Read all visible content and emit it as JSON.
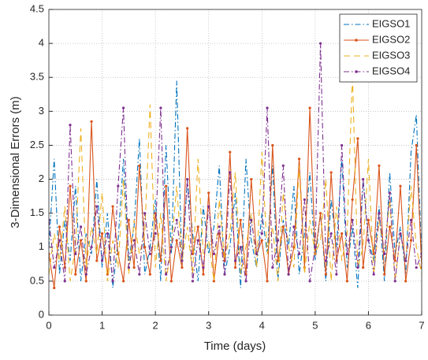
{
  "chart_data": {
    "type": "line",
    "xlabel": "Time (days)",
    "ylabel": "3-Dimensional Errors (m)",
    "x": [
      0,
      0.1,
      0.2,
      0.3,
      0.4,
      0.5,
      0.6,
      0.7,
      0.8,
      0.9,
      1,
      1.1,
      1.2,
      1.3,
      1.4,
      1.5,
      1.6,
      1.7,
      1.8,
      1.9,
      2,
      2.1,
      2.2,
      2.3,
      2.4,
      2.5,
      2.6,
      2.7,
      2.8,
      2.9,
      3,
      3.1,
      3.2,
      3.3,
      3.4,
      3.5,
      3.6,
      3.7,
      3.8,
      3.9,
      4,
      4.1,
      4.2,
      4.3,
      4.4,
      4.5,
      4.6,
      4.7,
      4.8,
      4.9,
      5,
      5.1,
      5.2,
      5.3,
      5.4,
      5.5,
      5.6,
      5.7,
      5.8,
      5.9,
      6,
      6.1,
      6.2,
      6.3,
      6.4,
      6.5,
      6.6,
      6.7,
      6.8,
      6.9,
      7
    ],
    "series": [
      {
        "name": "EIGSO1",
        "color": "#0072BD",
        "dash": "7 3 1.5 3",
        "marker": "none",
        "values": [
          1.0,
          2.3,
          0.6,
          1.4,
          0.8,
          1.9,
          0.5,
          1.2,
          0.9,
          2.0,
          0.7,
          1.5,
          0.4,
          1.1,
          2.3,
          0.8,
          1.3,
          2.6,
          0.6,
          1.0,
          1.7,
          0.5,
          2.5,
          0.9,
          3.45,
          0.7,
          2.0,
          1.2,
          0.5,
          1.6,
          0.9,
          1.3,
          2.2,
          0.6,
          1.0,
          1.8,
          0.4,
          2.3,
          1.1,
          0.7,
          1.5,
          0.9,
          2.2,
          0.5,
          1.4,
          1.0,
          1.9,
          0.6,
          1.2,
          2.1,
          0.8,
          1.5,
          0.5,
          1.7,
          1.0,
          2.3,
          0.7,
          1.3,
          0.4,
          2.0,
          1.1,
          0.8,
          1.6,
          0.5,
          2.1,
          0.9,
          1.3,
          0.6,
          2.4,
          2.95,
          0.8
        ]
      },
      {
        "name": "EIGSO2",
        "color": "#D95319",
        "dash": "none",
        "marker": "dot",
        "values": [
          0.9,
          0.4,
          1.3,
          0.7,
          1.9,
          0.6,
          1.1,
          0.5,
          2.85,
          0.8,
          1.2,
          0.6,
          1.6,
          0.9,
          0.5,
          1.4,
          0.7,
          2.2,
          1.0,
          0.6,
          1.5,
          0.8,
          1.9,
          0.5,
          1.1,
          0.7,
          2.75,
          0.9,
          1.3,
          0.6,
          1.8,
          0.5,
          1.2,
          0.8,
          2.4,
          0.7,
          1.4,
          0.6,
          2.0,
          0.9,
          1.1,
          0.5,
          2.5,
          0.8,
          1.3,
          0.6,
          1.0,
          2.3,
          0.7,
          3.05,
          0.9,
          1.5,
          0.6,
          2.1,
          0.8,
          1.2,
          0.5,
          1.7,
          2.6,
          0.7,
          1.4,
          0.9,
          2.2,
          0.6,
          1.3,
          0.8,
          1.9,
          0.5,
          1.1,
          2.5,
          0.7
        ]
      },
      {
        "name": "EIGSO3",
        "color": "#EDB120",
        "dash": "8 5",
        "marker": "none",
        "values": [
          0.6,
          1.2,
          0.8,
          1.6,
          0.5,
          1.0,
          2.75,
          0.7,
          1.3,
          0.9,
          1.8,
          0.5,
          1.1,
          0.7,
          2.0,
          0.6,
          1.4,
          0.9,
          1.2,
          3.1,
          0.7,
          1.5,
          0.5,
          1.0,
          1.9,
          0.8,
          1.3,
          0.6,
          2.3,
          0.9,
          1.1,
          0.5,
          1.7,
          0.8,
          1.2,
          2.1,
          0.6,
          1.0,
          1.5,
          0.7,
          2.4,
          0.9,
          1.3,
          0.5,
          1.8,
          1.0,
          0.7,
          2.2,
          0.6,
          1.4,
          0.9,
          1.1,
          2.0,
          0.5,
          1.6,
          0.8,
          1.2,
          3.55,
          0.7,
          1.0,
          2.3,
          0.6,
          1.4,
          0.9,
          1.7,
          0.5,
          1.2,
          0.8,
          1.9,
          1.0,
          0.6
        ]
      },
      {
        "name": "EIGSO4",
        "color": "#7E2F8E",
        "dash": "7 3 1.5 3",
        "marker": "dot",
        "values": [
          1.4,
          0.7,
          1.1,
          0.5,
          2.8,
          0.9,
          1.3,
          0.6,
          1.0,
          1.6,
          0.8,
          1.2,
          0.5,
          1.9,
          3.05,
          0.7,
          1.1,
          0.6,
          1.5,
          0.9,
          1.2,
          3.05,
          0.6,
          1.0,
          1.4,
          0.8,
          2.0,
          0.5,
          1.1,
          0.7,
          1.6,
          0.9,
          1.3,
          0.6,
          2.1,
          0.8,
          1.0,
          0.5,
          1.4,
          0.9,
          1.2,
          3.05,
          0.7,
          1.1,
          2.2,
          0.6,
          1.3,
          0.9,
          1.7,
          0.5,
          1.0,
          4.0,
          0.8,
          1.2,
          0.6,
          2.5,
          0.9,
          1.4,
          0.7,
          2.0,
          1.1,
          0.6,
          1.5,
          0.9,
          1.8,
          0.5,
          1.2,
          0.8,
          1.4,
          0.7,
          0.9
        ]
      }
    ],
    "xlim": [
      0,
      7
    ],
    "xticks": [
      0,
      1,
      2,
      3,
      4,
      5,
      6,
      7
    ],
    "ylim": [
      0,
      4.5
    ],
    "yticks": [
      0,
      0.5,
      1,
      1.5,
      2,
      2.5,
      3,
      3.5,
      4,
      4.5
    ],
    "grid": true,
    "legend": "northeast"
  }
}
